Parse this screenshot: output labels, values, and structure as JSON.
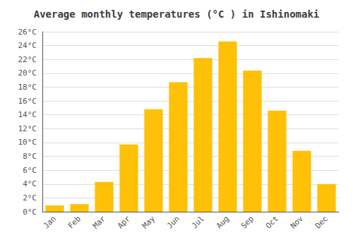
{
  "chart_data": {
    "type": "bar",
    "title": "Average monthly temperatures (°C ) in Ishinomaki",
    "categories": [
      "Jan",
      "Feb",
      "Mar",
      "Apr",
      "May",
      "Jun",
      "Jul",
      "Aug",
      "Sep",
      "Oct",
      "Nov",
      "Dec"
    ],
    "values": [
      0.9,
      1.1,
      4.3,
      9.7,
      14.8,
      18.7,
      22.2,
      24.6,
      20.4,
      14.6,
      8.8,
      4.0
    ],
    "color": "#FFC107",
    "ylim": [
      0,
      26
    ],
    "yticks": [
      {
        "value": 0,
        "label": "0°C"
      },
      {
        "value": 2,
        "label": "2°C"
      },
      {
        "value": 4,
        "label": "4°C"
      },
      {
        "value": 6,
        "label": "6°C"
      },
      {
        "value": 8,
        "label": "8°C"
      },
      {
        "value": 10,
        "label": "10°C"
      },
      {
        "value": 12,
        "label": "12°C"
      },
      {
        "value": 14,
        "label": "14°C"
      },
      {
        "value": 16,
        "label": "16°C"
      },
      {
        "value": 18,
        "label": "18°C"
      },
      {
        "value": 20,
        "label": "20°C"
      },
      {
        "value": 22,
        "label": "22°C"
      },
      {
        "value": 24,
        "label": "24°C"
      },
      {
        "value": 26,
        "label": "26°C"
      }
    ],
    "grid": true
  }
}
